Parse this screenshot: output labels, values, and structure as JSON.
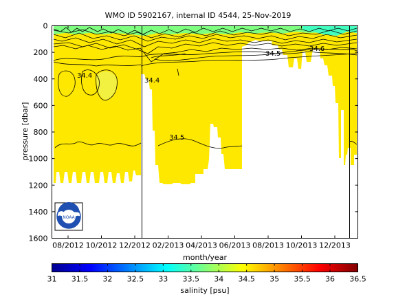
{
  "chart_data": {
    "type": "heatmap",
    "title": "WMO ID 5902167, internal ID 4544, 25-Nov-2019",
    "xlabel": "month/year",
    "ylabel": "pressure [dbar]",
    "x_ticks": [
      "08/2012",
      "10/2012",
      "12/2012",
      "02/2013",
      "04/2013",
      "06/2013",
      "08/2013",
      "10/2013",
      "12/2013"
    ],
    "y_ticks": [
      "0",
      "200",
      "400",
      "600",
      "800",
      "1000",
      "1200",
      "1400",
      "1600"
    ],
    "ylim": [
      0,
      1600
    ],
    "y_inverted": true,
    "grid": false,
    "colorbar": {
      "label": "salinity [psu]",
      "ticks": [
        "31",
        "31.5",
        "32",
        "32.5",
        "33",
        "33.5",
        "34",
        "34.5",
        "35",
        "35.5",
        "36",
        "36.5"
      ],
      "range": [
        31,
        36.5
      ],
      "colormap": "jet"
    },
    "contour_labels": [
      {
        "text": "34.4",
        "x": "2012-09",
        "y": 370
      },
      {
        "text": "34.4",
        "x": "2013-01",
        "y": 400
      },
      {
        "text": "34.5",
        "x": "2013-04",
        "y": 840
      },
      {
        "text": "34.5",
        "x": "2013-08",
        "y": 200
      },
      {
        "text": "34.6",
        "x": "2013-11",
        "y": 170
      }
    ],
    "dominant_value": 34.4,
    "logo": "noaa-logo"
  }
}
